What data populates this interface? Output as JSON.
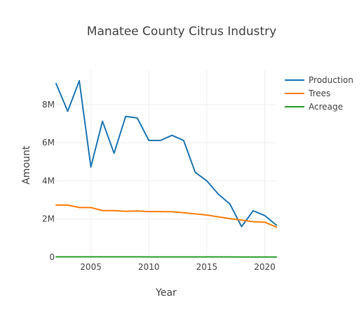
{
  "chart_data": {
    "type": "line",
    "title": "Manatee County Citrus Industry",
    "xlabel": "Year",
    "ylabel": "Amount",
    "xlim": [
      2002,
      2021
    ],
    "ylim": [
      -150000,
      9800000
    ],
    "x_ticks": [
      2005,
      2010,
      2015,
      2020
    ],
    "x_tick_labels": [
      "2005",
      "2010",
      "2015",
      "2020"
    ],
    "y_ticks": [
      0,
      2000000,
      4000000,
      6000000,
      8000000
    ],
    "y_tick_labels": [
      "0",
      "2M",
      "4M",
      "6M",
      "8M"
    ],
    "grid": true,
    "legend_position": "top-right",
    "x": [
      2002,
      2003,
      2004,
      2005,
      2006,
      2007,
      2008,
      2009,
      2010,
      2011,
      2012,
      2013,
      2014,
      2015,
      2016,
      2017,
      2018,
      2019,
      2020,
      2021
    ],
    "series": [
      {
        "name": "Production",
        "color": "#1f77b4",
        "values": [
          9100000,
          7650000,
          9250000,
          4730000,
          7130000,
          5450000,
          7380000,
          7300000,
          6120000,
          6120000,
          6390000,
          6120000,
          4450000,
          4000000,
          3300000,
          2780000,
          1600000,
          2430000,
          2180000,
          1680000
        ]
      },
      {
        "name": "Trees",
        "color": "#ff7f0e",
        "values": [
          2730000,
          2730000,
          2600000,
          2600000,
          2440000,
          2440000,
          2400000,
          2420000,
          2390000,
          2390000,
          2380000,
          2330000,
          2270000,
          2210000,
          2110000,
          2020000,
          1940000,
          1860000,
          1830000,
          1580000
        ]
      },
      {
        "name": "Acreage",
        "color": "#2ca02c",
        "values": [
          18000,
          18000,
          17000,
          16000,
          16000,
          15000,
          14000,
          14000,
          13000,
          13000,
          12000,
          12000,
          11000,
          11000,
          10000,
          10000,
          9000,
          9000,
          8000,
          8000
        ]
      }
    ]
  }
}
